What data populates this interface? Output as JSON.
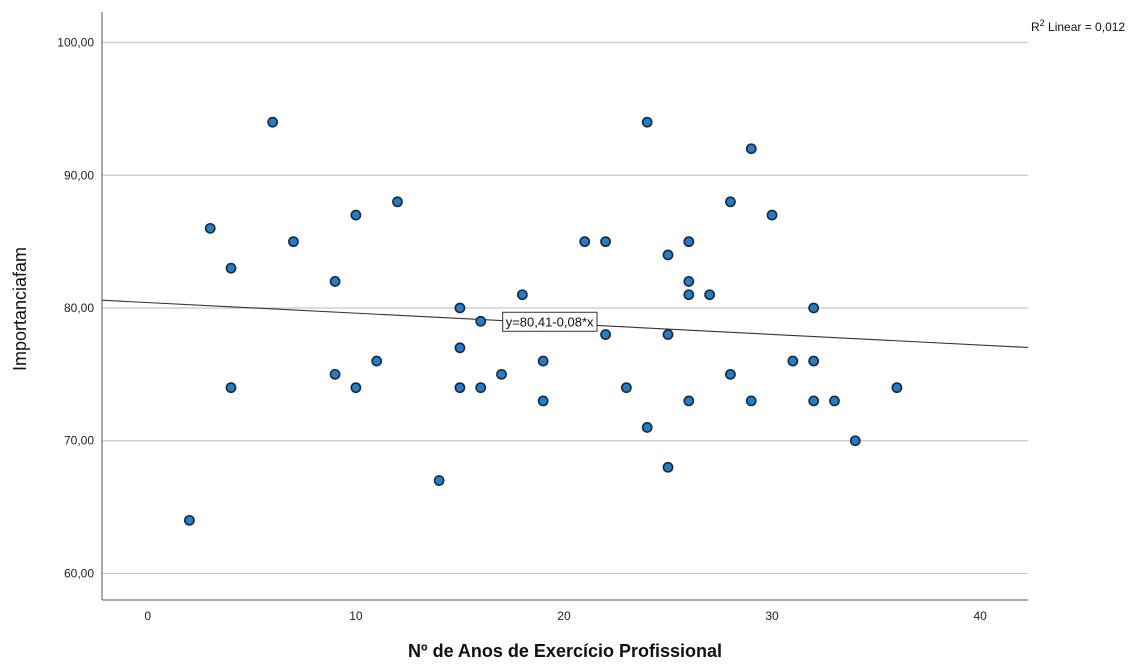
{
  "chart_data": {
    "type": "scatter",
    "title": "",
    "xlabel": "Nº de Anos de Exercício Profissional",
    "ylabel": "Importanciafam",
    "xlim": [
      -2.2,
      42.3
    ],
    "ylim": [
      58.0,
      102.3
    ],
    "xticks": [
      0,
      10,
      20,
      30,
      40
    ],
    "xtick_labels": [
      "0",
      "10",
      "20",
      "30",
      "40"
    ],
    "yticks": [
      60,
      70,
      80,
      90,
      100
    ],
    "ytick_labels": [
      "60,00",
      "70,00",
      "80,00",
      "90,00",
      "100,00"
    ],
    "grid": "horizontal",
    "points": [
      {
        "x": 2,
        "y": 64
      },
      {
        "x": 3,
        "y": 86
      },
      {
        "x": 4,
        "y": 83
      },
      {
        "x": 4,
        "y": 74
      },
      {
        "x": 6,
        "y": 94
      },
      {
        "x": 7,
        "y": 85
      },
      {
        "x": 9,
        "y": 82
      },
      {
        "x": 9,
        "y": 75
      },
      {
        "x": 10,
        "y": 87
      },
      {
        "x": 10,
        "y": 74
      },
      {
        "x": 11,
        "y": 76
      },
      {
        "x": 12,
        "y": 88
      },
      {
        "x": 14,
        "y": 67
      },
      {
        "x": 15,
        "y": 80
      },
      {
        "x": 15,
        "y": 77
      },
      {
        "x": 15,
        "y": 74
      },
      {
        "x": 16,
        "y": 79
      },
      {
        "x": 16,
        "y": 74
      },
      {
        "x": 17,
        "y": 75
      },
      {
        "x": 18,
        "y": 81
      },
      {
        "x": 19,
        "y": 76
      },
      {
        "x": 19,
        "y": 73
      },
      {
        "x": 21,
        "y": 85
      },
      {
        "x": 22,
        "y": 85
      },
      {
        "x": 22,
        "y": 78
      },
      {
        "x": 23,
        "y": 74
      },
      {
        "x": 24,
        "y": 94
      },
      {
        "x": 24,
        "y": 71
      },
      {
        "x": 25,
        "y": 84
      },
      {
        "x": 25,
        "y": 78
      },
      {
        "x": 25,
        "y": 68
      },
      {
        "x": 26,
        "y": 85
      },
      {
        "x": 26,
        "y": 82
      },
      {
        "x": 26,
        "y": 81
      },
      {
        "x": 26,
        "y": 73
      },
      {
        "x": 27,
        "y": 81
      },
      {
        "x": 28,
        "y": 88
      },
      {
        "x": 28,
        "y": 75
      },
      {
        "x": 29,
        "y": 92
      },
      {
        "x": 29,
        "y": 73
      },
      {
        "x": 30,
        "y": 87
      },
      {
        "x": 31,
        "y": 76
      },
      {
        "x": 32,
        "y": 80
      },
      {
        "x": 32,
        "y": 76
      },
      {
        "x": 32,
        "y": 73
      },
      {
        "x": 33,
        "y": 73
      },
      {
        "x": 34,
        "y": 70
      },
      {
        "x": 36,
        "y": 74
      }
    ],
    "fit_line": {
      "intercept": 80.41,
      "slope": -0.08
    },
    "fit_label": "y=80,41-0,08*x",
    "fit_label_anchor": {
      "x": 17.2,
      "y": 79
    },
    "r2_prefix": "R",
    "r2_sup": "2",
    "r2_text": " Linear = 0,012",
    "colors": {
      "point_fill": "#1f7fcf",
      "point_stroke": "#1b2838",
      "grid": "#c8c8c8",
      "axis": "#555555",
      "fit_line": "#333333"
    }
  }
}
